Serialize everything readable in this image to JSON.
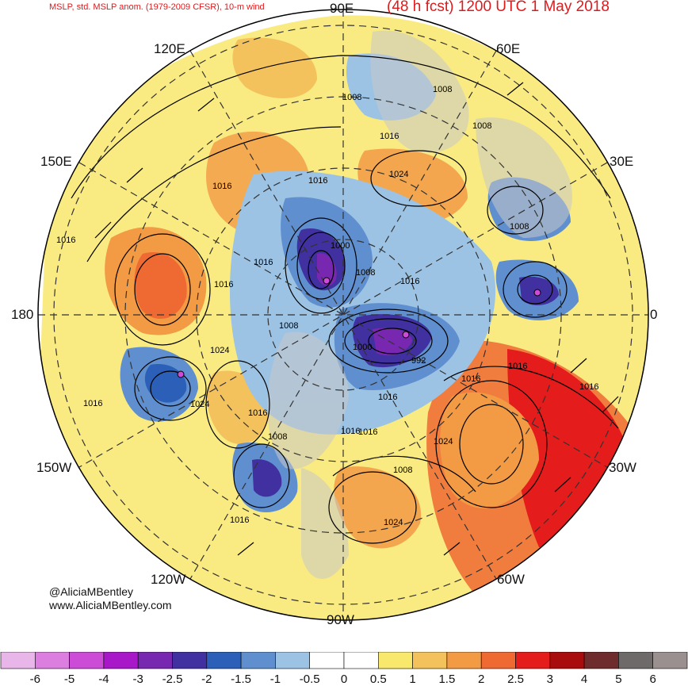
{
  "header": {
    "left_title": "MSLP, std. MSLP anom. (1979-2009 CFSR), 10-m wind",
    "right_title": "(48 h fcst) 1200 UTC 1 May 2018"
  },
  "longitude_labels": {
    "e90": "90E",
    "e60": "60E",
    "e30": "30E",
    "zero": "0",
    "w30": "30W",
    "w60": "60W",
    "w90": "90W",
    "w120": "120W",
    "w150": "150W",
    "lon180": "180",
    "e150": "150E",
    "e120": "120E"
  },
  "isobar_labels": [
    "1008",
    "1008",
    "1008",
    "1016",
    "1024",
    "1016",
    "1016",
    "1016",
    "1008",
    "1000",
    "1008",
    "1016",
    "1016",
    "1016",
    "1008",
    "1000",
    "992",
    "1016",
    "1024",
    "1016",
    "1024",
    "1016",
    "1016",
    "1016",
    "1008",
    "1016",
    "1024",
    "1016",
    "1016",
    "1008",
    "1024",
    "1016"
  ],
  "credits": {
    "handle": "@AliciaMBentley",
    "site": "www.AliciaMBentley.com"
  },
  "colorbar": {
    "colors": [
      "#e8b6e8",
      "#dc7ee0",
      "#cc4cd8",
      "#a818c8",
      "#7828b0",
      "#4030a0",
      "#2c60b8",
      "#5f8fce",
      "#9cc3e4",
      "#ffffff",
      "#ffffff",
      "#f8e86c",
      "#f4c25c",
      "#f29a44",
      "#ef6a32",
      "#e41c1c",
      "#a80c0c",
      "#6e2c2c",
      "#6e6a6a",
      "#9a9090"
    ],
    "ticks": [
      "-6",
      "-5",
      "-4",
      "-3",
      "-2.5",
      "-2",
      "-1.5",
      "-1",
      "-0.5",
      "0",
      "0.5",
      "1",
      "1.5",
      "2",
      "2.5",
      "3",
      "4",
      "5",
      "6"
    ]
  }
}
